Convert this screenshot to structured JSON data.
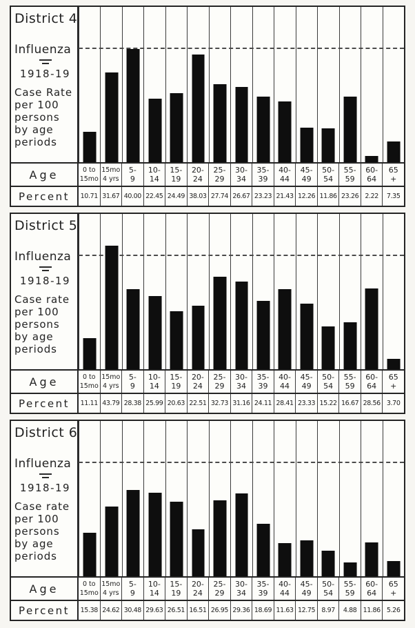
{
  "style": {
    "paper": "#f7f6f2",
    "panel_background": "#fdfdfa",
    "ink": "#242424",
    "bar_color": "#0e0e0e",
    "dash_color": "#4a4a4a"
  },
  "shared": {
    "age_header": "Age",
    "percent_header": "Percent",
    "age_line1": [
      "0 to",
      "15mo",
      "5-",
      "10-",
      "15-",
      "20-",
      "25-",
      "30-",
      "35-",
      "40-",
      "45-",
      "50-",
      "55-",
      "60-",
      "65"
    ],
    "age_line2": [
      "15mo",
      "4 yrs",
      "9",
      "14",
      "19",
      "24",
      "29",
      "34",
      "39",
      "44",
      "49",
      "54",
      "59",
      "64",
      "+"
    ]
  },
  "chart_data": [
    {
      "type": "bar",
      "title": "District 4",
      "disease_label": "Influenza",
      "years_label": "1918-19",
      "caption_lines": [
        "Case Rate",
        "per 100",
        "persons",
        "by age",
        "periods"
      ],
      "xlabel": "Age",
      "ylabel": "Percent (case rate per 100 persons)",
      "categories": [
        "0 to 15mo",
        "15mo-4 yrs",
        "5-9",
        "10-14",
        "15-19",
        "20-24",
        "25-29",
        "30-34",
        "35-39",
        "40-44",
        "45-49",
        "50-54",
        "55-59",
        "60-64",
        "65+"
      ],
      "values": [
        10.71,
        31.67,
        40.0,
        22.45,
        24.49,
        38.03,
        27.74,
        26.67,
        23.23,
        21.43,
        12.26,
        11.86,
        23.26,
        2.22,
        7.35
      ],
      "percent_labels": [
        "10.71",
        "31.67",
        "40.00",
        "22.45",
        "24.49",
        "38.03",
        "27.74",
        "26.67",
        "23.23",
        "21.43",
        "12.26",
        "11.86",
        "23.26",
        "2.22",
        "7.35"
      ],
      "ylim": [
        0,
        55
      ],
      "reference_line": 40,
      "grid": "vertical-column-rules",
      "legend": "none"
    },
    {
      "type": "bar",
      "title": "District 5",
      "disease_label": "Influenza",
      "years_label": "1918-19",
      "caption_lines": [
        "Case rate",
        "per 100",
        "persons",
        "by age",
        "periods"
      ],
      "xlabel": "Age",
      "ylabel": "Percent (case rate per 100 persons)",
      "categories": [
        "0 to 15mo",
        "15mo-4 yrs",
        "5-9",
        "10-14",
        "15-19",
        "20-24",
        "25-29",
        "30-34",
        "35-39",
        "40-44",
        "45-49",
        "50-54",
        "55-59",
        "60-64",
        "65+"
      ],
      "values": [
        11.11,
        43.79,
        28.38,
        25.99,
        20.63,
        22.51,
        32.73,
        31.16,
        24.11,
        28.41,
        23.33,
        15.22,
        16.67,
        28.56,
        3.7
      ],
      "percent_labels": [
        "11.11",
        "43.79",
        "28.38",
        "25.99",
        "20.63",
        "22.51",
        "32.73",
        "31.16",
        "24.11",
        "28.41",
        "23.33",
        "15.22",
        "16.67",
        "28.56",
        "3.70"
      ],
      "ylim": [
        0,
        55
      ],
      "reference_line": 40,
      "grid": "vertical-column-rules",
      "legend": "none"
    },
    {
      "type": "bar",
      "title": "District 6",
      "disease_label": "Influenza",
      "years_label": "1918-19",
      "caption_lines": [
        "Case rate",
        "per 100",
        "persons",
        "by age",
        "periods"
      ],
      "xlabel": "Age",
      "ylabel": "Percent (case rate per 100 persons)",
      "categories": [
        "0 to 15mo",
        "15mo-4 yrs",
        "5-9",
        "10-14",
        "15-19",
        "20-24",
        "25-29",
        "30-34",
        "35-39",
        "40-44",
        "45-49",
        "50-54",
        "55-59",
        "60-64",
        "65+"
      ],
      "values": [
        15.38,
        24.62,
        30.48,
        29.63,
        26.51,
        16.51,
        26.95,
        29.36,
        18.69,
        11.63,
        12.75,
        8.97,
        4.88,
        11.86,
        5.26
      ],
      "percent_labels": [
        "15.38",
        "24.62",
        "30.48",
        "29.63",
        "26.51",
        "16.51",
        "26.95",
        "29.36",
        "18.69",
        "11.63",
        "12.75",
        "8.97",
        "4.88",
        "11.86",
        "5.26"
      ],
      "ylim": [
        0,
        55
      ],
      "reference_line": 40,
      "grid": "vertical-column-rules",
      "legend": "none"
    }
  ]
}
